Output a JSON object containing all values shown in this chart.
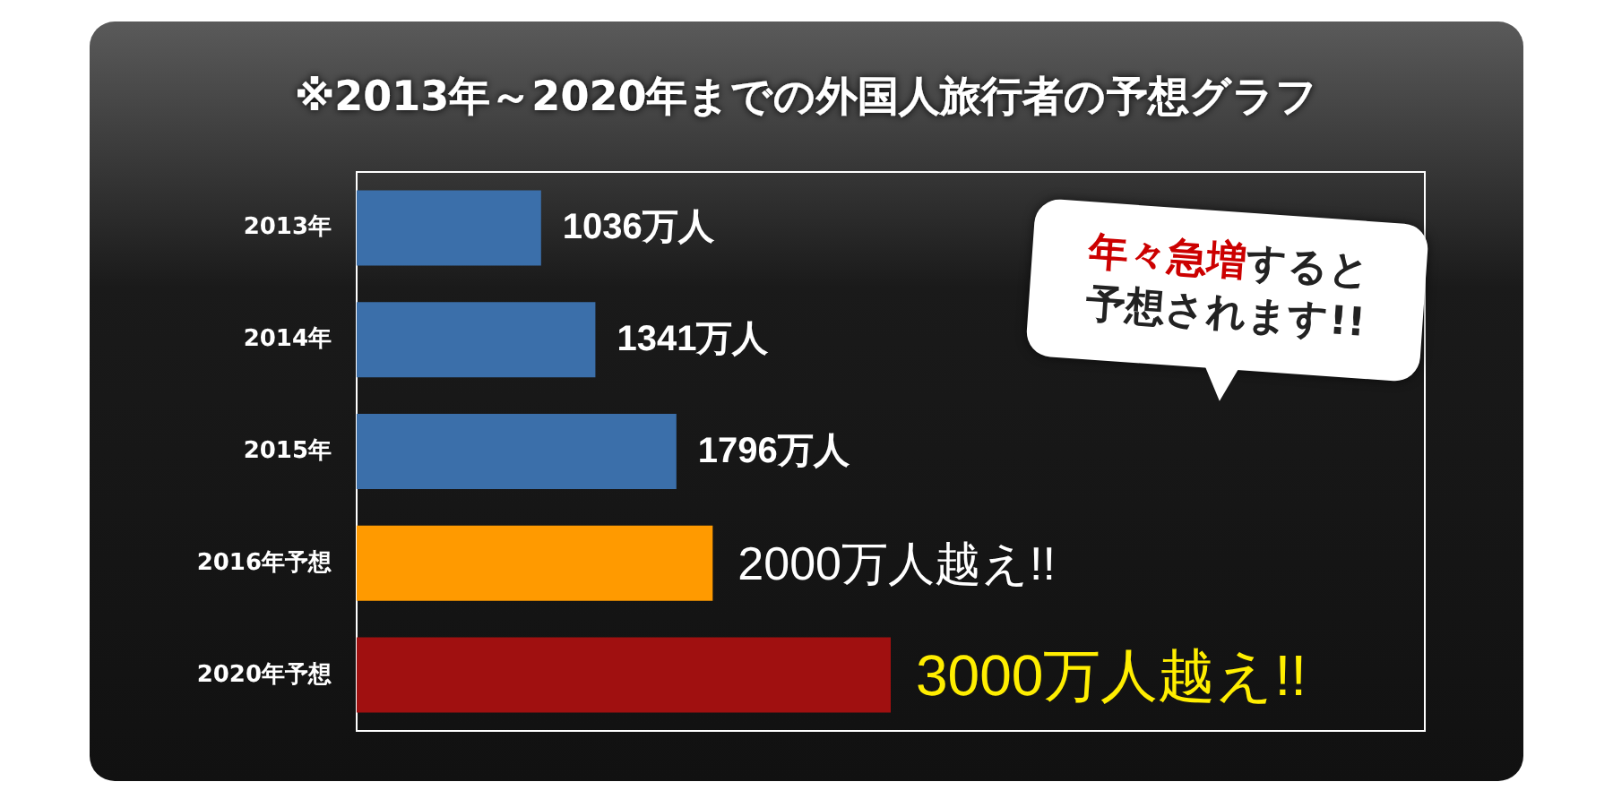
{
  "chart_data": {
    "type": "bar",
    "orientation": "horizontal",
    "title": "※2013年～2020年までの外国人旅行者の予想グラフ",
    "categories": [
      "2013年",
      "2014年",
      "2015年",
      "2016年予想",
      "2020年予想"
    ],
    "values": [
      1036,
      1341,
      1796,
      2000,
      3000
    ],
    "colors": [
      "#3b6faa",
      "#3b6faa",
      "#3b6faa",
      "#ff9a00",
      "#a01010"
    ],
    "value_labels": [
      "1036万人",
      "1341万人",
      "1796万人",
      "2000万人越え!!",
      "3000万人越え!!"
    ],
    "xlim": [
      0,
      6000
    ],
    "annotations": [
      "年々急増",
      "すると予想されます!!"
    ],
    "grid": false
  }
}
